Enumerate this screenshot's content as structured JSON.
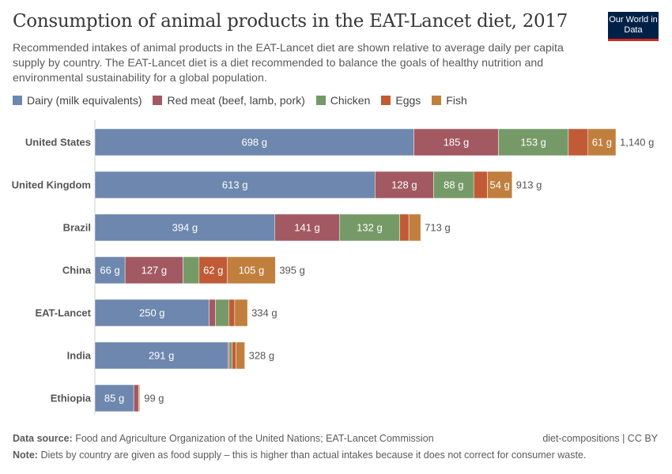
{
  "title": "Consumption of animal products in the EAT-Lancet diet, 2017",
  "subtitle": "Recommended intakes of animal products in the EAT-Lancet diet are shown relative to average daily per capita supply by country. The EAT-Lancet diet is a diet recommended to balance the goals of healthy nutrition and environmental sustainability for a global population.",
  "logo": "Our World in Data",
  "footer": {
    "source_label": "Data source:",
    "source": "Food and Agriculture Organization of the United Nations; EAT-Lancet Commission",
    "url": "diet-compositions | CC BY",
    "note_label": "Note:",
    "note": "Diets by country are given as food supply – this is higher than actual intakes because it does not correct for consumer waste."
  },
  "chart_data": {
    "type": "bar",
    "orientation": "horizontal",
    "stacked": true,
    "unit": "g",
    "legend_position": "top-left",
    "categories": [
      "United States",
      "United Kingdom",
      "Brazil",
      "China",
      "EAT-Lancet",
      "India",
      "Ethiopia"
    ],
    "totals": [
      "1,140 g",
      "913 g",
      "713 g",
      "395 g",
      "334 g",
      "328 g",
      "99 g"
    ],
    "series": [
      {
        "name": "Dairy (milk equivalents)",
        "color": "#6d87ae",
        "values": [
          698,
          613,
          394,
          66,
          250,
          291,
          85
        ]
      },
      {
        "name": "Red meat (beef, lamb, pork)",
        "color": "#a25961",
        "values": [
          185,
          128,
          141,
          127,
          14,
          3,
          11
        ]
      },
      {
        "name": "Chicken",
        "color": "#769a67",
        "values": [
          153,
          88,
          132,
          35,
          29,
          6,
          0
        ]
      },
      {
        "name": "Eggs",
        "color": "#c15b36",
        "values": [
          43,
          30,
          20,
          62,
          13,
          9,
          1
        ]
      },
      {
        "name": "Fish",
        "color": "#c17f3e",
        "values": [
          61,
          54,
          26,
          105,
          28,
          19,
          2
        ]
      }
    ]
  }
}
